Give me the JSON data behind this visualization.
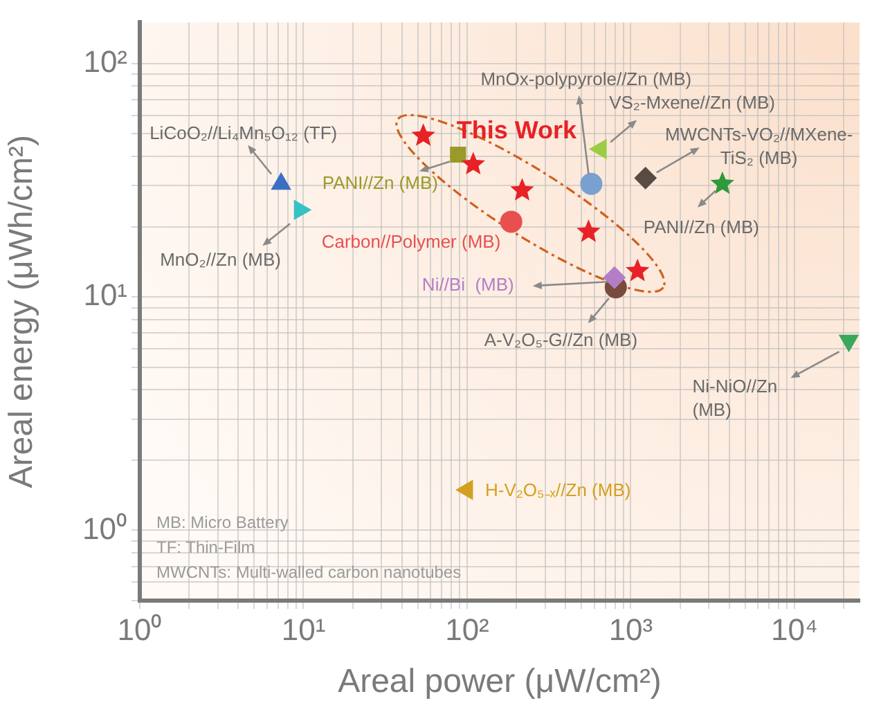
{
  "chart_data": {
    "type": "scatter",
    "xlabel": "Areal power (μW/cm²)",
    "ylabel": "Areal energy (μWh/cm²)",
    "log": "xy",
    "grid": true,
    "legend": false,
    "xlim": [
      1,
      25000
    ],
    "ylim": [
      0.5,
      150
    ],
    "xticks": [
      {
        "value": 1,
        "label": "10⁰"
      },
      {
        "value": 2,
        "label": null
      },
      {
        "value": 3,
        "label": null
      },
      {
        "value": 4,
        "label": null
      },
      {
        "value": 5,
        "label": null
      },
      {
        "value": 6,
        "label": null
      },
      {
        "value": 7,
        "label": null
      },
      {
        "value": 8,
        "label": null
      },
      {
        "value": 9,
        "label": null
      },
      {
        "value": 10,
        "label": "10¹"
      },
      {
        "value": 20,
        "label": null
      },
      {
        "value": 30,
        "label": null
      },
      {
        "value": 40,
        "label": null
      },
      {
        "value": 50,
        "label": null
      },
      {
        "value": 60,
        "label": null
      },
      {
        "value": 70,
        "label": null
      },
      {
        "value": 80,
        "label": null
      },
      {
        "value": 90,
        "label": null
      },
      {
        "value": 100,
        "label": "10²"
      },
      {
        "value": 200,
        "label": null
      },
      {
        "value": 300,
        "label": null
      },
      {
        "value": 400,
        "label": null
      },
      {
        "value": 500,
        "label": null
      },
      {
        "value": 600,
        "label": null
      },
      {
        "value": 700,
        "label": null
      },
      {
        "value": 800,
        "label": null
      },
      {
        "value": 900,
        "label": null
      },
      {
        "value": 1000,
        "label": "10³"
      },
      {
        "value": 2000,
        "label": null
      },
      {
        "value": 3000,
        "label": null
      },
      {
        "value": 4000,
        "label": null
      },
      {
        "value": 5000,
        "label": null
      },
      {
        "value": 6000,
        "label": null
      },
      {
        "value": 7000,
        "label": null
      },
      {
        "value": 8000,
        "label": null
      },
      {
        "value": 9000,
        "label": null
      },
      {
        "value": 10000,
        "label": "10⁴"
      },
      {
        "value": 20000,
        "label": null
      }
    ],
    "yticks": [
      {
        "value": 0.5,
        "label": null
      },
      {
        "value": 0.6,
        "label": null
      },
      {
        "value": 0.7,
        "label": null
      },
      {
        "value": 0.8,
        "label": null
      },
      {
        "value": 0.9,
        "label": null
      },
      {
        "value": 1,
        "label": "10⁰"
      },
      {
        "value": 2,
        "label": null
      },
      {
        "value": 3,
        "label": null
      },
      {
        "value": 4,
        "label": null
      },
      {
        "value": 5,
        "label": null
      },
      {
        "value": 6,
        "label": null
      },
      {
        "value": 7,
        "label": null
      },
      {
        "value": 8,
        "label": null
      },
      {
        "value": 9,
        "label": null
      },
      {
        "value": 10,
        "label": "10¹"
      },
      {
        "value": 20,
        "label": null
      },
      {
        "value": 30,
        "label": null
      },
      {
        "value": 40,
        "label": null
      },
      {
        "value": 50,
        "label": null
      },
      {
        "value": 60,
        "label": null
      },
      {
        "value": 70,
        "label": null
      },
      {
        "value": 80,
        "label": null
      },
      {
        "value": 90,
        "label": null
      },
      {
        "value": 100,
        "label": "10²"
      }
    ],
    "series": [
      {
        "name": "LiCoO₂//Li₄Mn₅O₁₂ (TF)",
        "color": "#3b6fc4",
        "marker": "triangle",
        "x": [
          7.3
        ],
        "values": [
          30.5
        ]
      },
      {
        "name": "MnO₂//Zn (MB)",
        "color": "#36c2c4",
        "marker": "triangle",
        "x": [
          9.5
        ],
        "values": [
          23.6
        ]
      },
      {
        "name": "This Work",
        "color": "#e82127",
        "marker": "star",
        "x": [
          54,
          109,
          217,
          552,
          1100
        ],
        "values": [
          49,
          37,
          28.6,
          19,
          12.9
        ]
      },
      {
        "name": "PANI//Zn (MB)",
        "color": "#9a9a2a",
        "marker": "square",
        "x": [
          88
        ],
        "values": [
          40.7
        ]
      },
      {
        "name": "Carbon//Polymer (MB)",
        "color": "#e85050",
        "marker": "circle",
        "x": [
          186
        ],
        "values": [
          21
        ]
      },
      {
        "name": "Ni//Bi  (MB)",
        "color": "#b27fc6",
        "marker": "diamond",
        "x": [
          795
        ],
        "values": [
          12.1
        ]
      },
      {
        "name": "A-V₂O₅-G//Zn (MB)",
        "color": "#7a4a3e",
        "marker": "circle",
        "x": [
          810
        ],
        "values": [
          11
        ]
      },
      {
        "name": "MnOx-polypyrole//Zn (MB)",
        "color": "#7aa0cf",
        "marker": "circle",
        "x": [
          574
        ],
        "values": [
          30.5
        ]
      },
      {
        "name": "VS₂-Mxene//Zn (MB)",
        "color": "#9acc44",
        "marker": "triangle",
        "x": [
          656
        ],
        "values": [
          43
        ]
      },
      {
        "name": "MWCNTs-VO₂//MXene-TiS₂ (MB)",
        "color": "#5a4a44",
        "marker": "diamond",
        "x": [
          1230
        ],
        "values": [
          32.3
        ]
      },
      {
        "name": "PANI//Zn (MB)",
        "color": "#2f9a3a",
        "marker": "star",
        "x": [
          3630
        ],
        "values": [
          30.5
        ]
      },
      {
        "name": "Ni-NiO//Zn (MB)",
        "color": "#3aa85a",
        "marker": "triangle",
        "x": [
          21500
        ],
        "values": [
          6.5
        ]
      },
      {
        "name": "H-V₂O₅₋ₓ//Zn (MB)",
        "color": "#d4a020",
        "marker": "triangle",
        "x": [
          100
        ],
        "values": [
          1.49
        ]
      }
    ],
    "annotations": [
      "MB: Micro Battery",
      "TF: Thin-Film",
      "MWCNTs: Multi-walled carbon nanotubes"
    ]
  }
}
